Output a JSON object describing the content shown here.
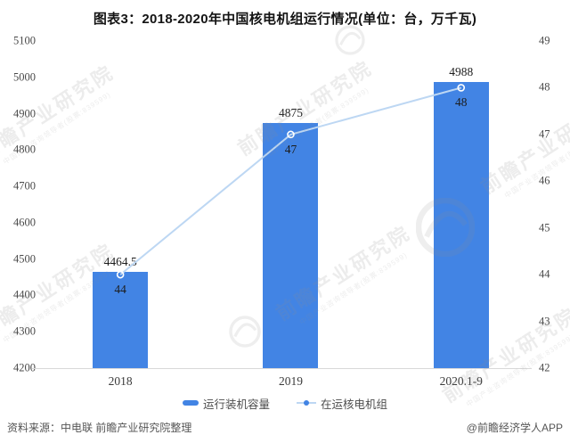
{
  "title": "图表3：2018-2020年中国核电机组运行情况(单位：台，万千瓦)",
  "chart_data": {
    "type": "bar",
    "subtype": "bar-line-combo-dual-axis",
    "categories": [
      "2018",
      "2019",
      "2020.1-9"
    ],
    "series": [
      {
        "name": "运行装机容量",
        "type": "bar",
        "axis": "left",
        "values": [
          4464.5,
          4875,
          4988
        ],
        "labels": [
          "4464.5",
          "4875",
          "4988"
        ],
        "color": "#4284E4"
      },
      {
        "name": "在运核电机组",
        "type": "line",
        "axis": "right",
        "values": [
          44,
          47,
          48
        ],
        "labels": [
          "44",
          "47",
          "48"
        ],
        "color": "#BDD7F3",
        "marker_stroke": "#ffffff",
        "legend_dot_color": "#4284E4"
      }
    ],
    "left_axis": {
      "min": 4200,
      "max": 5100,
      "step": 100,
      "ticks": [
        5100,
        5000,
        4900,
        4800,
        4700,
        4600,
        4500,
        4400,
        4300,
        4200
      ]
    },
    "right_axis": {
      "min": 42,
      "max": 49,
      "step": 1,
      "ticks": [
        49,
        48,
        47,
        46,
        45,
        44,
        43,
        42
      ]
    },
    "grid": false,
    "legend_position": "bottom"
  },
  "watermark": {
    "text": "前瞻产业研究院",
    "subtext": "中国产业咨询领导者(股票:839599)"
  },
  "footer": {
    "source": "资料来源：中电联 前瞻产业研究院整理",
    "credit": "@前瞻经济学人APP"
  }
}
